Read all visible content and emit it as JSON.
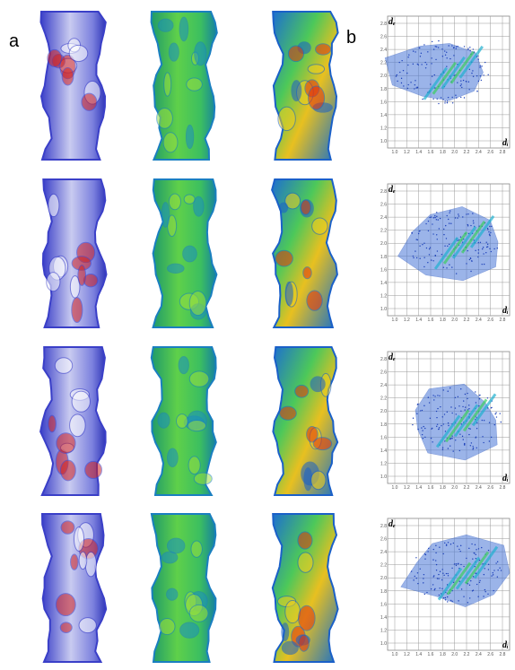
{
  "panel_labels": {
    "a": "a",
    "b": "b"
  },
  "fingerprint": {
    "x_label": "dᵢ",
    "y_label": "dₑ",
    "ticks": [
      "1.0",
      "1.2",
      "1.4",
      "1.6",
      "1.8",
      "2.0",
      "2.2",
      "2.4",
      "2.6",
      "2.8"
    ]
  }
}
